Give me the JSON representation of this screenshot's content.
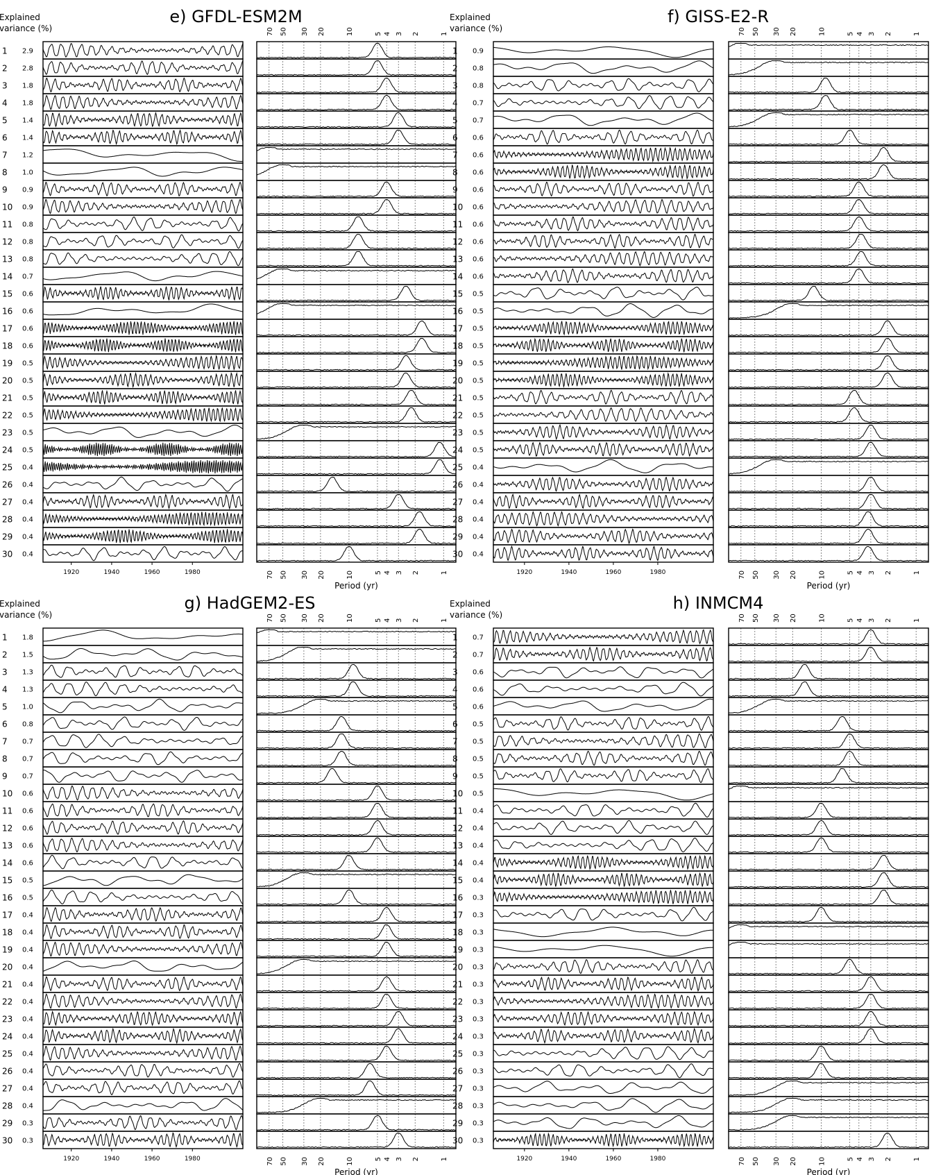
{
  "figure": {
    "ev_label_line1": "Explained",
    "ev_label_line2": "variance (%)",
    "period_label": "Period (yr)",
    "year_ticks": [
      "1920",
      "1940",
      "1960",
      "1980"
    ],
    "period_ticks": [
      "70",
      "50",
      "30",
      "20",
      "10",
      "5",
      "4",
      "3",
      "2",
      "1"
    ]
  },
  "chart_data": [
    {
      "type": "line",
      "title": "e) GFDL-ESM2M",
      "xlabel": "Period (yr)",
      "ylabel": "Explained variance (%)",
      "components": [
        1,
        2,
        3,
        4,
        5,
        6,
        7,
        8,
        9,
        10,
        11,
        12,
        13,
        14,
        15,
        16,
        17,
        18,
        19,
        20,
        21,
        22,
        23,
        24,
        25,
        26,
        27,
        28,
        29,
        30
      ],
      "explained_variance": [
        2.9,
        2.8,
        1.8,
        1.8,
        1.4,
        1.4,
        1.2,
        1.0,
        0.9,
        0.9,
        0.8,
        0.8,
        0.8,
        0.7,
        0.6,
        0.6,
        0.6,
        0.6,
        0.5,
        0.5,
        0.5,
        0.5,
        0.5,
        0.5,
        0.4,
        0.4,
        0.4,
        0.4,
        0.4,
        0.4
      ],
      "spectral_peak_period_yr": [
        5,
        5,
        4,
        4,
        3,
        3,
        70,
        50,
        4,
        4,
        8,
        8,
        8,
        50,
        2.5,
        50,
        1.7,
        1.7,
        2.5,
        2.5,
        2.2,
        2.2,
        30,
        1.1,
        1.1,
        15,
        3,
        1.8,
        1.8,
        10
      ]
    },
    {
      "type": "line",
      "title": "f) GISS-E2-R",
      "xlabel": "Period (yr)",
      "ylabel": "Explained variance (%)",
      "components": [
        1,
        2,
        3,
        4,
        5,
        6,
        7,
        8,
        9,
        10,
        11,
        12,
        13,
        14,
        15,
        16,
        17,
        18,
        19,
        20,
        21,
        22,
        23,
        24,
        25,
        26,
        27,
        28,
        29,
        30
      ],
      "explained_variance": [
        0.9,
        0.8,
        0.8,
        0.7,
        0.7,
        0.6,
        0.6,
        0.6,
        0.6,
        0.6,
        0.6,
        0.6,
        0.6,
        0.6,
        0.5,
        0.5,
        0.5,
        0.5,
        0.5,
        0.5,
        0.5,
        0.5,
        0.5,
        0.5,
        0.4,
        0.4,
        0.4,
        0.4,
        0.4,
        0.4
      ],
      "spectral_peak_period_yr": [
        70,
        30,
        9,
        9,
        30,
        5,
        2.2,
        2.2,
        4,
        4,
        4,
        3.8,
        3.8,
        4,
        12,
        20,
        2,
        2,
        2,
        2,
        4.5,
        4.5,
        3,
        3,
        30,
        3,
        3,
        3.2,
        3.2,
        3.2
      ]
    },
    {
      "type": "line",
      "title": "g) HadGEM2-ES",
      "xlabel": "Period (yr)",
      "ylabel": "Explained variance (%)",
      "components": [
        1,
        2,
        3,
        4,
        5,
        6,
        7,
        8,
        9,
        10,
        11,
        12,
        13,
        14,
        15,
        16,
        17,
        18,
        19,
        20,
        21,
        22,
        23,
        24,
        25,
        26,
        27,
        28,
        29,
        30
      ],
      "explained_variance": [
        1.8,
        1.5,
        1.3,
        1.3,
        1.0,
        0.8,
        0.7,
        0.7,
        0.7,
        0.6,
        0.6,
        0.6,
        0.6,
        0.6,
        0.5,
        0.5,
        0.4,
        0.4,
        0.4,
        0.4,
        0.4,
        0.4,
        0.4,
        0.4,
        0.4,
        0.4,
        0.4,
        0.4,
        0.3,
        0.3
      ],
      "spectral_peak_period_yr": [
        70,
        30,
        9,
        9,
        20,
        12,
        12,
        12,
        15,
        5,
        5,
        5,
        5,
        10,
        30,
        10,
        4,
        4,
        4,
        30,
        4,
        4,
        3,
        3,
        4,
        6,
        6,
        20,
        5,
        3
      ]
    },
    {
      "type": "line",
      "title": "h) INMCM4",
      "xlabel": "Period (yr)",
      "ylabel": "Explained variance (%)",
      "components": [
        1,
        2,
        3,
        4,
        5,
        6,
        7,
        8,
        9,
        10,
        11,
        12,
        13,
        14,
        15,
        16,
        17,
        18,
        19,
        20,
        21,
        22,
        23,
        24,
        25,
        26,
        27,
        28,
        29,
        30
      ],
      "explained_variance": [
        0.7,
        0.7,
        0.6,
        0.6,
        0.6,
        0.5,
        0.5,
        0.5,
        0.5,
        0.5,
        0.4,
        0.4,
        0.4,
        0.4,
        0.4,
        0.3,
        0.3,
        0.3,
        0.3,
        0.3,
        0.3,
        0.3,
        0.3,
        0.3,
        0.3,
        0.3,
        0.3,
        0.3,
        0.3,
        0.3
      ],
      "spectral_peak_period_yr": [
        3,
        3,
        15,
        15,
        30,
        6,
        5,
        5,
        6,
        70,
        10,
        10,
        10,
        2.2,
        2.2,
        2.2,
        10,
        70,
        70,
        5,
        3,
        3,
        3,
        3,
        10,
        10,
        20,
        20,
        20,
        2
      ]
    }
  ]
}
